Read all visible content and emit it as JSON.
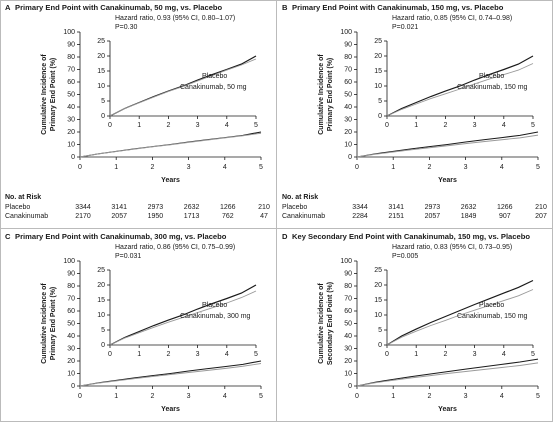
{
  "chart_data": [
    {
      "type": "line",
      "panel": "A",
      "title": "Primary End Point with Canakinumab, 50 mg, vs. Placebo",
      "ylabel": [
        "Cumulative Incidence of",
        "Primary End Point (%)"
      ],
      "xlabel": "Years",
      "x": [
        0,
        0.5,
        1,
        1.5,
        2,
        2.5,
        3,
        3.5,
        4,
        4.5,
        5
      ],
      "xlim": [
        0,
        5
      ],
      "xticks": [
        0,
        1,
        2,
        3,
        4,
        5
      ],
      "ylim": [
        0,
        100
      ],
      "yticks": [
        0,
        10,
        20,
        30,
        40,
        50,
        60,
        70,
        80,
        90,
        100
      ],
      "series": [
        {
          "name": "Placebo",
          "color": "#1a1a1a",
          "values": [
            0,
            2.5,
            4.5,
            6.5,
            8.3,
            10,
            12,
            13.8,
            15.5,
            17.3,
            20
          ]
        },
        {
          "name": "Canakinumab, 50 mg",
          "color": "#9a9a9a",
          "values": [
            0,
            2.5,
            4.4,
            6.3,
            8.2,
            9.8,
            11.7,
            13.5,
            15.3,
            17,
            19
          ]
        }
      ],
      "inset": {
        "ylim": [
          0,
          25
        ],
        "yticks": [
          0,
          5,
          10,
          15,
          20,
          25
        ],
        "xlim": [
          0,
          5
        ],
        "xticks": [
          0,
          1,
          2,
          3,
          4,
          5
        ],
        "annotation": "Hazard ratio, 0.93 (95% CI, 0.80–1.07)",
        "p_value": "P=0.30"
      },
      "risk_table": {
        "title": "No. at Risk",
        "rows": [
          {
            "label": "Placebo",
            "values": [
              3344,
              3141,
              2973,
              2632,
              1266,
              210
            ]
          },
          {
            "label": "Canakinumab",
            "values": [
              2170,
              2057,
              1950,
              1713,
              762,
              47
            ]
          }
        ]
      }
    },
    {
      "type": "line",
      "panel": "B",
      "title": "Primary End Point with Canakinumab, 150 mg, vs. Placebo",
      "ylabel": [
        "Cumulative Incidence of",
        "Primary End Point (%)"
      ],
      "xlabel": "Years",
      "x": [
        0,
        0.5,
        1,
        1.5,
        2,
        2.5,
        3,
        3.5,
        4,
        4.5,
        5
      ],
      "xlim": [
        0,
        5
      ],
      "xticks": [
        0,
        1,
        2,
        3,
        4,
        5
      ],
      "ylim": [
        0,
        100
      ],
      "yticks": [
        0,
        10,
        20,
        30,
        40,
        50,
        60,
        70,
        80,
        90,
        100
      ],
      "series": [
        {
          "name": "Placebo",
          "color": "#1a1a1a",
          "values": [
            0,
            2.5,
            4.5,
            6.5,
            8.3,
            10,
            12,
            13.8,
            15.5,
            17.3,
            20
          ]
        },
        {
          "name": "Canakinumab, 150 mg",
          "color": "#9a9a9a",
          "values": [
            0,
            2.2,
            4,
            5.8,
            7.4,
            9,
            10.7,
            12.3,
            13.8,
            15.3,
            17.5
          ]
        }
      ],
      "inset": {
        "ylim": [
          0,
          25
        ],
        "yticks": [
          0,
          5,
          10,
          15,
          20,
          25
        ],
        "xlim": [
          0,
          5
        ],
        "xticks": [
          0,
          1,
          2,
          3,
          4,
          5
        ],
        "annotation": "Hazard ratio, 0.85 (95% CI, 0.74–0.98)",
        "p_value": "P=0.021"
      },
      "risk_table": {
        "title": "No. at Risk",
        "rows": [
          {
            "label": "Placebo",
            "values": [
              3344,
              3141,
              2973,
              2632,
              1266,
              210
            ]
          },
          {
            "label": "Canakinumab",
            "values": [
              2284,
              2151,
              2057,
              1849,
              907,
              207
            ]
          }
        ]
      }
    },
    {
      "type": "line",
      "panel": "C",
      "title": "Primary End Point with Canakinumab, 300 mg, vs. Placebo",
      "ylabel": [
        "Cumulative Incidence of",
        "Primary End Point (%)"
      ],
      "xlabel": "Years",
      "x": [
        0,
        0.5,
        1,
        1.5,
        2,
        2.5,
        3,
        3.5,
        4,
        4.5,
        5
      ],
      "xlim": [
        0,
        5
      ],
      "xticks": [
        0,
        1,
        2,
        3,
        4,
        5
      ],
      "ylim": [
        0,
        100
      ],
      "yticks": [
        0,
        10,
        20,
        30,
        40,
        50,
        60,
        70,
        80,
        90,
        100
      ],
      "series": [
        {
          "name": "Placebo",
          "color": "#1a1a1a",
          "values": [
            0,
            2.5,
            4.5,
            6.5,
            8.3,
            10,
            12,
            13.8,
            15.5,
            17.3,
            20
          ]
        },
        {
          "name": "Canakinumab, 300 mg",
          "color": "#9a9a9a",
          "values": [
            0,
            2.3,
            4.1,
            5.9,
            7.6,
            9.2,
            10.8,
            12.4,
            14,
            15.8,
            18
          ]
        }
      ],
      "inset": {
        "ylim": [
          0,
          25
        ],
        "yticks": [
          0,
          5,
          10,
          15,
          20,
          25
        ],
        "xlim": [
          0,
          5
        ],
        "xticks": [
          0,
          1,
          2,
          3,
          4,
          5
        ],
        "annotation": "Hazard ratio, 0.86 (95% CI, 0.75–0.99)",
        "p_value": "P=0.031"
      }
    },
    {
      "type": "line",
      "panel": "D",
      "title": "Key Secondary End Point with Canakinumab, 150 mg, vs. Placebo",
      "ylabel": [
        "Cumulative Incidence of",
        "Secondary End Point (%)"
      ],
      "xlabel": "Years",
      "x": [
        0,
        0.5,
        1,
        1.5,
        2,
        2.5,
        3,
        3.5,
        4,
        4.5,
        5
      ],
      "xlim": [
        0,
        5
      ],
      "xticks": [
        0,
        1,
        2,
        3,
        4,
        5
      ],
      "ylim": [
        0,
        100
      ],
      "yticks": [
        0,
        10,
        20,
        30,
        40,
        50,
        60,
        70,
        80,
        90,
        100
      ],
      "series": [
        {
          "name": "Placebo",
          "color": "#1a1a1a",
          "values": [
            0,
            3,
            5.3,
            7.5,
            9.5,
            11.5,
            13.5,
            15.4,
            17.3,
            19.2,
            21.5
          ]
        },
        {
          "name": "Canakinumab, 150 mg",
          "color": "#9a9a9a",
          "values": [
            0,
            2.6,
            4.6,
            6.5,
            8.2,
            10,
            11.6,
            13.2,
            14.8,
            16.4,
            18.5
          ]
        }
      ],
      "inset": {
        "ylim": [
          0,
          25
        ],
        "yticks": [
          0,
          5,
          10,
          15,
          20,
          25
        ],
        "xlim": [
          0,
          5
        ],
        "xticks": [
          0,
          1,
          2,
          3,
          4,
          5
        ],
        "annotation": "Hazard ratio, 0.83 (95% CI, 0.73–0.95)",
        "p_value": "P=0.005"
      }
    }
  ]
}
